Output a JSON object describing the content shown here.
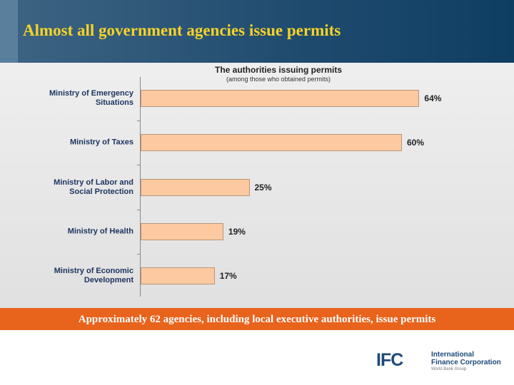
{
  "header": {
    "title": "Almost all government agencies issue permits"
  },
  "chart_data": {
    "type": "bar",
    "orientation": "horizontal",
    "title": "The authorities issuing permits",
    "subtitle": "(among those who obtained permits)",
    "categories": [
      "Ministry of Emergency Situations",
      "Ministry of Taxes",
      "Ministry of Labor and Social Protection",
      "Ministry of Health",
      "Ministry of Economic Development"
    ],
    "values": [
      64,
      60,
      25,
      19,
      17
    ],
    "value_labels": [
      "64%",
      "60%",
      "25%",
      "19%",
      "17%"
    ],
    "color": "#fcc9a0"
  },
  "banner": {
    "text": "Approximately 62 agencies, including local executive authorities, issue permits"
  },
  "logo": {
    "mark": "IFC",
    "name_line1": "International",
    "name_line2": "Finance Corporation",
    "group": "World Bank Group"
  }
}
